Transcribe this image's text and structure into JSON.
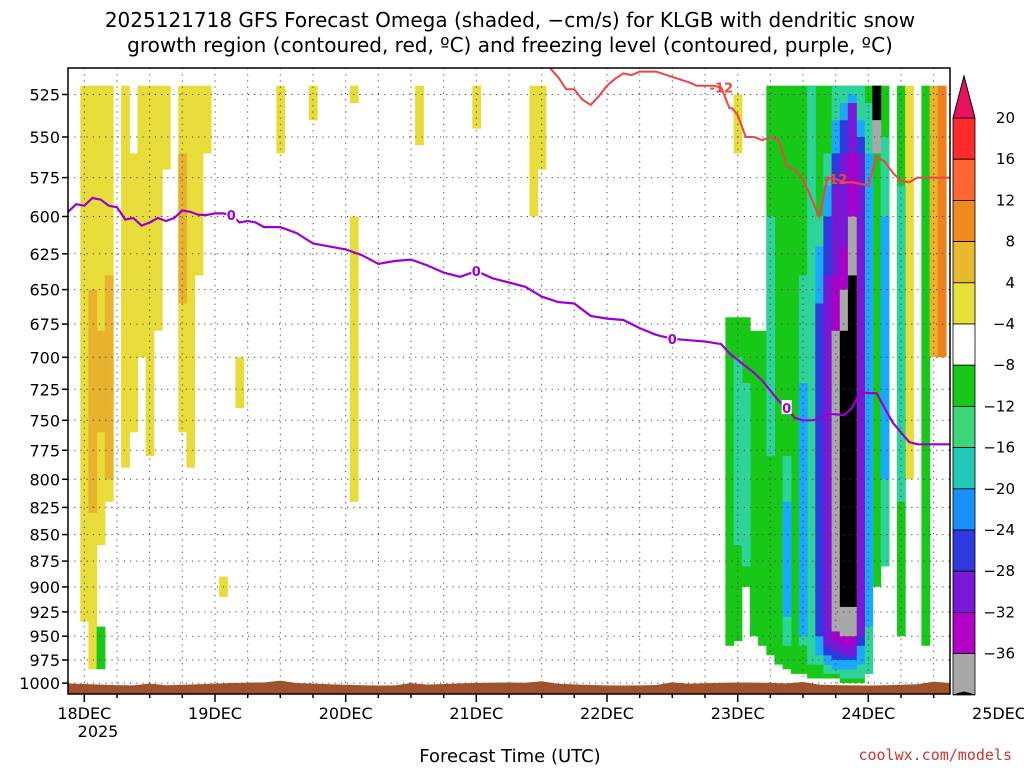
{
  "chart_data": {
    "type": "heatmap",
    "title_line1": "2025121718 GFS Forecast Omega (shaded, −cm/s) for KLGB with dendritic snow",
    "title_line2": "growth region (contoured, red, ºC) and freezing level (contoured, purple, ºC)",
    "xlabel": "Forecast Time (UTC)",
    "ylabel": "",
    "credit": "coolwx.com/models",
    "credit_color": "#cc3333",
    "x_ticks": [
      "18DEC",
      "19DEC",
      "20DEC",
      "21DEC",
      "22DEC",
      "23DEC",
      "24DEC",
      "25DEC"
    ],
    "x_subtick": "2025",
    "xlim_hours": [
      -3,
      159
    ],
    "y_ticks": [
      525,
      550,
      575,
      600,
      625,
      650,
      675,
      700,
      725,
      750,
      775,
      800,
      825,
      850,
      875,
      900,
      925,
      950,
      975,
      1000
    ],
    "ylim_hpa": [
      510,
      1012
    ],
    "y_scale": "log-pressure",
    "colorbar": {
      "labels": [
        "20",
        "16",
        "12",
        "8",
        "4",
        "−4",
        "−8",
        "−12",
        "−16",
        "−20",
        "−24",
        "−28",
        "−32",
        "−36"
      ],
      "colors": [
        "#e8125e",
        "#ff2a2a",
        "#ff6633",
        "#f08a1e",
        "#e8b82e",
        "#e8e03a",
        "#ffffff",
        "#18c818",
        "#3cd77a",
        "#22c8b8",
        "#1890ff",
        "#2e3adf",
        "#7a18d8",
        "#b200c8",
        "#a8a8a8",
        "#000000"
      ]
    },
    "shading": [
      {
        "x": 0,
        "p0": 520,
        "p1": 935,
        "omega": 4
      },
      {
        "x": 1.5,
        "p0": 520,
        "p1": 985,
        "omega": 4
      },
      {
        "x": 3,
        "p0": 520,
        "p1": 860,
        "omega": 4
      },
      {
        "x": 4.5,
        "p0": 520,
        "p1": 820,
        "omega": 4
      },
      {
        "x": 7.5,
        "p0": 520,
        "p1": 790,
        "omega": 4
      },
      {
        "x": 9,
        "p0": 560,
        "p1": 760,
        "omega": 4
      },
      {
        "x": 10.5,
        "p0": 520,
        "p1": 700,
        "omega": 4
      },
      {
        "x": 12,
        "p0": 520,
        "p1": 780,
        "omega": 4
      },
      {
        "x": 13.5,
        "p0": 520,
        "p1": 680,
        "omega": 4
      },
      {
        "x": 15,
        "p0": 520,
        "p1": 570,
        "omega": 4
      },
      {
        "x": 18,
        "p0": 520,
        "p1": 760,
        "omega": 4
      },
      {
        "x": 19.5,
        "p0": 520,
        "p1": 790,
        "omega": 4
      },
      {
        "x": 21,
        "p0": 520,
        "p1": 640,
        "omega": 4
      },
      {
        "x": 22.5,
        "p0": 520,
        "p1": 560,
        "omega": 4
      },
      {
        "x": 1.5,
        "p0": 650,
        "p1": 830,
        "omega": 8
      },
      {
        "x": 3,
        "p0": 680,
        "p1": 760,
        "omega": 8
      },
      {
        "x": 4.5,
        "p0": 700,
        "p1": 740,
        "omega": 12
      },
      {
        "x": 4.5,
        "p0": 640,
        "p1": 800,
        "omega": 8
      },
      {
        "x": 18,
        "p0": 560,
        "p1": 660,
        "omega": 8
      },
      {
        "x": 3,
        "p0": 940,
        "p1": 985,
        "omega": -8
      },
      {
        "x": 36,
        "p0": 520,
        "p1": 560,
        "omega": 4
      },
      {
        "x": 49.5,
        "p0": 600,
        "p1": 820,
        "omega": 4
      },
      {
        "x": 28.5,
        "p0": 700,
        "p1": 740,
        "omega": 4
      },
      {
        "x": 25.5,
        "p0": 890,
        "p1": 910,
        "omega": 4
      },
      {
        "x": 42,
        "p0": 520,
        "p1": 540,
        "omega": 4
      },
      {
        "x": 49.5,
        "p0": 520,
        "p1": 530,
        "omega": 4
      },
      {
        "x": 61.5,
        "p0": 520,
        "p1": 555,
        "omega": 4
      },
      {
        "x": 72,
        "p0": 520,
        "p1": 545,
        "omega": 4
      },
      {
        "x": 82.5,
        "p0": 520,
        "p1": 600,
        "omega": 4
      },
      {
        "x": 84,
        "p0": 520,
        "p1": 570,
        "omega": 4
      },
      {
        "x": 120,
        "p0": 525,
        "p1": 560,
        "omega": 4
      },
      {
        "x": 118.5,
        "p0": 670,
        "p1": 960,
        "omega": -8
      },
      {
        "x": 120,
        "p0": 670,
        "p1": 955,
        "omega": -8
      },
      {
        "x": 121.5,
        "p0": 670,
        "p1": 900,
        "omega": -8
      },
      {
        "x": 123,
        "p0": 680,
        "p1": 950,
        "omega": -8
      },
      {
        "x": 124.5,
        "p0": 680,
        "p1": 960,
        "omega": -8
      },
      {
        "x": 126,
        "p0": 520,
        "p1": 970,
        "omega": -8
      },
      {
        "x": 127.5,
        "p0": 520,
        "p1": 980,
        "omega": -8
      },
      {
        "x": 129,
        "p0": 520,
        "p1": 985,
        "omega": -8
      },
      {
        "x": 130.5,
        "p0": 520,
        "p1": 990,
        "omega": -8
      },
      {
        "x": 132,
        "p0": 520,
        "p1": 990,
        "omega": -8
      },
      {
        "x": 133.5,
        "p0": 520,
        "p1": 995,
        "omega": -8
      },
      {
        "x": 135,
        "p0": 520,
        "p1": 995,
        "omega": -8
      },
      {
        "x": 136.5,
        "p0": 520,
        "p1": 995,
        "omega": -8
      },
      {
        "x": 138,
        "p0": 520,
        "p1": 995,
        "omega": -8
      },
      {
        "x": 139.5,
        "p0": 520,
        "p1": 1000,
        "omega": -8
      },
      {
        "x": 141,
        "p0": 520,
        "p1": 1000,
        "omega": -8
      },
      {
        "x": 142.5,
        "p0": 520,
        "p1": 1000,
        "omega": -8
      },
      {
        "x": 144,
        "p0": 520,
        "p1": 990,
        "omega": -8
      },
      {
        "x": 145.5,
        "p0": 520,
        "p1": 900,
        "omega": -8
      },
      {
        "x": 147,
        "p0": 520,
        "p1": 880,
        "omega": -8
      },
      {
        "x": 150,
        "p0": 520,
        "p1": 950,
        "omega": -8
      },
      {
        "x": 151.5,
        "p0": 520,
        "p1": 800,
        "omega": 4
      },
      {
        "x": 154.5,
        "p0": 520,
        "p1": 960,
        "omega": -8
      },
      {
        "x": 156,
        "p0": 520,
        "p1": 700,
        "omega": 8
      },
      {
        "x": 120,
        "p0": 700,
        "p1": 860,
        "omega": -12
      },
      {
        "x": 121.5,
        "p0": 720,
        "p1": 880,
        "omega": -12
      },
      {
        "x": 126,
        "p0": 600,
        "p1": 780,
        "omega": -12
      },
      {
        "x": 129,
        "p0": 780,
        "p1": 960,
        "omega": -12
      },
      {
        "x": 132,
        "p0": 640,
        "p1": 960,
        "omega": -12
      },
      {
        "x": 133.5,
        "p0": 520,
        "p1": 980,
        "omega": -12
      },
      {
        "x": 135,
        "p0": 600,
        "p1": 980,
        "omega": -12
      },
      {
        "x": 136.5,
        "p0": 560,
        "p1": 990,
        "omega": -12
      },
      {
        "x": 138,
        "p0": 520,
        "p1": 990,
        "omega": -12
      },
      {
        "x": 139.5,
        "p0": 520,
        "p1": 995,
        "omega": -12
      },
      {
        "x": 141,
        "p0": 520,
        "p1": 995,
        "omega": -12
      },
      {
        "x": 142.5,
        "p0": 520,
        "p1": 995,
        "omega": -12
      },
      {
        "x": 144,
        "p0": 530,
        "p1": 990,
        "omega": -12
      },
      {
        "x": 147,
        "p0": 550,
        "p1": 880,
        "omega": -12
      },
      {
        "x": 150,
        "p0": 580,
        "p1": 820,
        "omega": -12
      },
      {
        "x": 129,
        "p0": 820,
        "p1": 930,
        "omega": -16
      },
      {
        "x": 132,
        "p0": 720,
        "p1": 950,
        "omega": -16
      },
      {
        "x": 135,
        "p0": 620,
        "p1": 970,
        "omega": -16
      },
      {
        "x": 136.5,
        "p0": 580,
        "p1": 980,
        "omega": -16
      },
      {
        "x": 138,
        "p0": 540,
        "p1": 985,
        "omega": -16
      },
      {
        "x": 139.5,
        "p0": 530,
        "p1": 985,
        "omega": -16
      },
      {
        "x": 141,
        "p0": 525,
        "p1": 985,
        "omega": -16
      },
      {
        "x": 142.5,
        "p0": 540,
        "p1": 980,
        "omega": -16
      },
      {
        "x": 144,
        "p0": 560,
        "p1": 940,
        "omega": -16
      },
      {
        "x": 147,
        "p0": 600,
        "p1": 800,
        "omega": -16
      },
      {
        "x": 135,
        "p0": 660,
        "p1": 950,
        "omega": -20
      },
      {
        "x": 136.5,
        "p0": 600,
        "p1": 970,
        "omega": -20
      },
      {
        "x": 138,
        "p0": 560,
        "p1": 975,
        "omega": -20
      },
      {
        "x": 139.5,
        "p0": 540,
        "p1": 975,
        "omega": -20
      },
      {
        "x": 141,
        "p0": 530,
        "p1": 975,
        "omega": -20
      },
      {
        "x": 142.5,
        "p0": 550,
        "p1": 960,
        "omega": -20
      },
      {
        "x": 136.5,
        "p0": 640,
        "p1": 960,
        "omega": -24
      },
      {
        "x": 138,
        "p0": 580,
        "p1": 965,
        "omega": -24
      },
      {
        "x": 139.5,
        "p0": 560,
        "p1": 970,
        "omega": -24
      },
      {
        "x": 141,
        "p0": 530,
        "p1": 970,
        "omega": -24
      },
      {
        "x": 142.5,
        "p0": 560,
        "p1": 950,
        "omega": -24
      },
      {
        "x": 138,
        "p0": 640,
        "p1": 955,
        "omega": -28
      },
      {
        "x": 139.5,
        "p0": 620,
        "p1": 960,
        "omega": -28
      },
      {
        "x": 141,
        "p0": 560,
        "p1": 960,
        "omega": -28
      },
      {
        "x": 138,
        "p0": 680,
        "p1": 945,
        "omega": -32
      },
      {
        "x": 139.5,
        "p0": 650,
        "p1": 950,
        "omega": -32
      },
      {
        "x": 141,
        "p0": 600,
        "p1": 950,
        "omega": -32
      },
      {
        "x": 139.5,
        "p0": 680,
        "p1": 920,
        "omega": -36
      },
      {
        "x": 141,
        "p0": 640,
        "p1": 920,
        "omega": -36
      },
      {
        "x": 145.5,
        "p0": 520,
        "p1": 540,
        "omega": -36
      },
      {
        "x": 145.5,
        "p0": 540,
        "p1": 560,
        "omega": -32
      },
      {
        "x": 157.5,
        "p0": 520,
        "p1": 700,
        "omega": 12
      }
    ],
    "freezing_level": {
      "label": "0",
      "label_at_hours": [
        27,
        72,
        108,
        129
      ],
      "x": [
        -3,
        -1.5,
        0,
        1.5,
        3,
        4.5,
        6,
        7.5,
        9,
        10.5,
        12,
        13.5,
        15,
        16.5,
        18,
        19.5,
        21,
        22.5,
        24,
        25.5,
        27,
        28.5,
        30,
        31.5,
        33,
        36,
        39,
        42,
        45,
        48,
        51,
        54,
        57,
        60,
        63,
        66,
        69,
        72,
        75,
        78,
        81,
        84,
        87,
        90,
        93,
        96,
        99,
        102,
        105,
        108,
        111,
        114,
        117,
        118.5,
        120,
        121.5,
        123,
        124.5,
        126,
        127.5,
        129,
        130.5,
        132,
        133.5,
        135,
        136.5,
        138,
        139.5,
        141,
        142.5,
        144,
        145.5,
        147,
        148.5,
        150,
        151.5,
        153,
        156,
        159
      ],
      "p": [
        597,
        592,
        593,
        588,
        589,
        593,
        594,
        602,
        601,
        606,
        604,
        601,
        603,
        601,
        596,
        597,
        599,
        599,
        598,
        598,
        599,
        604,
        603,
        604,
        607,
        607,
        611,
        618,
        620,
        622,
        626,
        632,
        630,
        629,
        633,
        638,
        641,
        637,
        642,
        645,
        648,
        655,
        659,
        660,
        669,
        671,
        672,
        678,
        683,
        686,
        687,
        688,
        690,
        697,
        702,
        707,
        712,
        718,
        726,
        734,
        740,
        748,
        750,
        750,
        749,
        745,
        745,
        746,
        740,
        727,
        728,
        728,
        740,
        752,
        760,
        768,
        770,
        770,
        770
      ]
    },
    "dgz_contour": {
      "label": "-12",
      "label_at_hours": [
        117,
        138
      ],
      "x": [
        105,
        108,
        111,
        112.5,
        114,
        115.5,
        117,
        118.5,
        119,
        120,
        121.5,
        123,
        124.5,
        126,
        127.5,
        129,
        130.5,
        132,
        133.5,
        135,
        136.5,
        138,
        139.5,
        141,
        142.5,
        144,
        145.5,
        147,
        148.5,
        150,
        151.5,
        153,
        156,
        159
      ],
      "p": [
        512,
        515,
        518,
        520,
        520,
        520,
        521,
        533,
        533,
        537,
        550,
        550,
        552,
        550,
        552,
        568,
        570,
        576,
        588,
        600,
        575,
        576,
        578,
        578,
        579,
        580,
        562,
        565,
        572,
        577,
        578,
        575,
        575,
        575
      ]
    },
    "dgz_contour_left": {
      "x": [
        85.5,
        87,
        88.5,
        90,
        91.5,
        93,
        94.5,
        96,
        97.5,
        99,
        100.5,
        102,
        103.5,
        105
      ],
      "p": [
        510,
        515,
        522,
        522,
        528,
        531,
        526,
        520,
        516,
        513,
        514,
        512,
        512,
        512
      ]
    },
    "terrain_color": "#a0522d",
    "freezing_color": "#9b00d3",
    "dgz_color": "#ee4444"
  }
}
